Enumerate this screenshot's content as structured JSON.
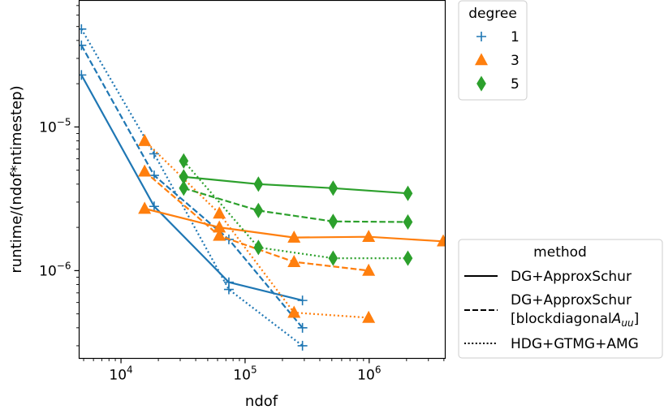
{
  "chart_data": {
    "type": "line",
    "xlabel": "ndof",
    "ylabel": "runtime/(ndof*ntimestep)",
    "xscale": "log",
    "yscale": "log",
    "xlim": [
      4600,
      4100000
    ],
    "ylim": [
      2.45e-07,
      7.6e-05
    ],
    "xticks": [
      {
        "value": 10000,
        "base": "10",
        "exp": "4"
      },
      {
        "value": 100000,
        "base": "10",
        "exp": "5"
      },
      {
        "value": 1000000,
        "base": "10",
        "exp": "6"
      }
    ],
    "yticks": [
      {
        "value": 1e-06,
        "base": "10",
        "exp": "−6"
      },
      {
        "value": 1e-05,
        "base": "10",
        "exp": "−5"
      }
    ],
    "degree_legend": {
      "title": "degree",
      "entries": [
        {
          "label": "1",
          "color": "#1f77b4",
          "marker": "plus"
        },
        {
          "label": "3",
          "color": "#ff7f0e",
          "marker": "triangle"
        },
        {
          "label": "5",
          "color": "#2ca02c",
          "marker": "diamond"
        }
      ],
      "placement": "upper right, outside axes"
    },
    "method_legend": {
      "title": "method",
      "entries": [
        {
          "label": "DG+ApproxSchur",
          "style": "solid"
        },
        {
          "label": "DG+ApproxSchur",
          "label2_prefix": "[blockdiagonal",
          "label2_math": "A",
          "label2_sub": "uu",
          "label2_suffix": "]",
          "style": "dashed"
        },
        {
          "label": "HDG+GTMG+AMG",
          "style": "dotted"
        }
      ],
      "placement": "lower right, outside axes"
    },
    "series": [
      {
        "degree": "1",
        "method": "DG+ApproxSchur",
        "color": "#1f77b4",
        "marker": "plus",
        "style": "solid",
        "x": [
          4800,
          18500,
          74000,
          290000
        ],
        "y": [
          2.3e-05,
          2.8e-06,
          8.3e-07,
          6.2e-07
        ]
      },
      {
        "degree": "1",
        "method": "DG+ApproxSchur [blockdiagonal A_uu]",
        "color": "#1f77b4",
        "marker": "plus",
        "style": "dashed",
        "x": [
          4800,
          18500,
          74000,
          290000
        ],
        "y": [
          3.7e-05,
          4.6e-06,
          1.65e-06,
          4e-07
        ]
      },
      {
        "degree": "1",
        "method": "HDG+GTMG+AMG",
        "color": "#1f77b4",
        "marker": "plus",
        "style": "dotted",
        "x": [
          4800,
          18500,
          74000,
          290000
        ],
        "y": [
          4.8e-05,
          6.5e-06,
          7.4e-07,
          3e-07
        ]
      },
      {
        "degree": "3",
        "method": "DG+ApproxSchur",
        "color": "#ff7f0e",
        "marker": "triangle",
        "style": "solid",
        "x": [
          15500,
          62000,
          248000,
          990000,
          3950000
        ],
        "y": [
          2.7e-06,
          2e-06,
          1.7e-06,
          1.72e-06,
          1.6e-06
        ]
      },
      {
        "degree": "3",
        "method": "DG+ApproxSchur [blockdiagonal A_uu]",
        "color": "#ff7f0e",
        "marker": "triangle",
        "style": "dashed",
        "x": [
          15500,
          62000,
          248000,
          990000
        ],
        "y": [
          4.9e-06,
          1.75e-06,
          1.15e-06,
          1e-06
        ]
      },
      {
        "degree": "3",
        "method": "HDG+GTMG+AMG",
        "color": "#ff7f0e",
        "marker": "triangle",
        "style": "dotted",
        "x": [
          15500,
          62000,
          248000,
          990000
        ],
        "y": [
          8e-06,
          2.5e-06,
          5.1e-07,
          4.7e-07
        ]
      },
      {
        "degree": "5",
        "method": "DG+ApproxSchur",
        "color": "#2ca02c",
        "marker": "diamond",
        "style": "solid",
        "x": [
          32000,
          128000,
          512000,
          2050000
        ],
        "y": [
          4.5e-06,
          4e-06,
          3.75e-06,
          3.45e-06
        ]
      },
      {
        "degree": "5",
        "method": "DG+ApproxSchur [blockdiagonal A_uu]",
        "color": "#2ca02c",
        "marker": "diamond",
        "style": "dashed",
        "x": [
          32000,
          128000,
          512000,
          2050000
        ],
        "y": [
          3.75e-06,
          2.62e-06,
          2.2e-06,
          2.18e-06
        ]
      },
      {
        "degree": "5",
        "method": "HDG+GTMG+AMG",
        "color": "#2ca02c",
        "marker": "diamond",
        "style": "dotted",
        "x": [
          32000,
          128000,
          512000,
          2050000
        ],
        "y": [
          5.8e-06,
          1.45e-06,
          1.22e-06,
          1.22e-06
        ]
      }
    ]
  }
}
